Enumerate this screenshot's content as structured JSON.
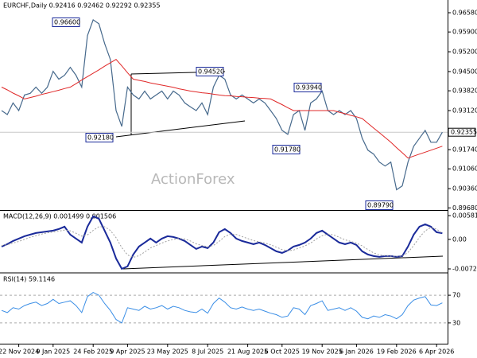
{
  "chart_data": [
    {
      "type": "line",
      "title": "EURCHF,Daily  0.92416 0.92462 0.92292 0.92355",
      "watermark": "ActionForex",
      "ylim": [
        0.8966,
        0.9703
      ],
      "yticks": [
        {
          "value": 0.9658,
          "label": "0.96580"
        },
        {
          "value": 0.959,
          "label": "0.95900"
        },
        {
          "value": 0.952,
          "label": "0.95200"
        },
        {
          "value": 0.945,
          "label": "0.94500"
        },
        {
          "value": 0.9382,
          "label": "0.93820"
        },
        {
          "value": 0.9312,
          "label": "0.93120"
        },
        {
          "value": 0.9174,
          "label": "0.91740"
        },
        {
          "value": 0.9106,
          "label": "0.91060"
        },
        {
          "value": 0.9036,
          "label": "0.90360"
        },
        {
          "value": 0.8968,
          "label": "0.89680"
        }
      ],
      "last_price": {
        "value": 0.92355,
        "label": "0.92355"
      },
      "annotations": [
        "0.96600",
        "0.94520",
        "0.92180",
        "0.93940",
        "0.91780",
        "0.89790"
      ],
      "series": [
        {
          "name": "EURCHF",
          "color": "#46698c",
          "values": [
            0.9312,
            0.9298,
            0.9339,
            0.9312,
            0.9367,
            0.9373,
            0.9395,
            0.9373,
            0.9395,
            0.9451,
            0.9423,
            0.9437,
            0.9465,
            0.9437,
            0.9395,
            0.9577,
            0.9633,
            0.9619,
            0.9549,
            0.9493,
            0.9312,
            0.9256,
            0.9395,
            0.9367,
            0.9353,
            0.9381,
            0.9353,
            0.9367,
            0.9381,
            0.9353,
            0.9381,
            0.9367,
            0.9339,
            0.9325,
            0.9312,
            0.9339,
            0.9298,
            0.9395,
            0.9437,
            0.9423,
            0.9367,
            0.9353,
            0.9367,
            0.9353,
            0.9339,
            0.9353,
            0.9339,
            0.9312,
            0.9284,
            0.9242,
            0.9228,
            0.9298,
            0.9312,
            0.9242,
            0.9339,
            0.9353,
            0.9381,
            0.9312,
            0.9298,
            0.9312,
            0.9298,
            0.9312,
            0.9284,
            0.9214,
            0.9172,
            0.9158,
            0.913,
            0.9116,
            0.913,
            0.9032,
            0.9046,
            0.913,
            0.9186,
            0.9214,
            0.9242,
            0.92,
            0.92,
            0.92355
          ]
        },
        {
          "name": "MA",
          "color": "#e02828",
          "values": [
            0.9395,
            0.9385,
            0.9374,
            0.9364,
            0.9353,
            0.9358,
            0.9363,
            0.9369,
            0.9374,
            0.9379,
            0.9384,
            0.939,
            0.9395,
            0.9407,
            0.942,
            0.9432,
            0.9444,
            0.9456,
            0.9469,
            0.9481,
            0.9493,
            0.947,
            0.9446,
            0.9423,
            0.9419,
            0.9415,
            0.941,
            0.9406,
            0.9402,
            0.9398,
            0.9394,
            0.9389,
            0.9385,
            0.9381,
            0.9378,
            0.9375,
            0.9373,
            0.937,
            0.9367,
            0.9365,
            0.9364,
            0.9362,
            0.9361,
            0.9359,
            0.9358,
            0.9356,
            0.9355,
            0.9353,
            0.9343,
            0.9333,
            0.9322,
            0.9312,
            0.9312,
            0.9312,
            0.9312,
            0.9312,
            0.9312,
            0.9312,
            0.9312,
            0.9306,
            0.9301,
            0.9295,
            0.929,
            0.9284,
            0.9267,
            0.925,
            0.9234,
            0.9217,
            0.92,
            0.9181,
            0.9163,
            0.9144,
            0.9151,
            0.9158,
            0.9165,
            0.9172,
            0.9179,
            0.9186
          ]
        }
      ]
    },
    {
      "type": "line",
      "title": "MACD(12,26,9) 0.001499 0.001506",
      "ylim": [
        -0.00761,
        0.00679
      ],
      "yticks": [
        0.005814,
        {
          "value": 0,
          "label": "0.00"
        },
        -0.007222
      ],
      "series": [
        {
          "name": "MACD",
          "color": "#1a2a9a",
          "values": [
            -0.00175,
            -0.00117,
            -0.00039,
            0.00019,
            0.00078,
            0.00117,
            0.00156,
            0.00175,
            0.00195,
            0.00214,
            0.00253,
            0.00311,
            0.00117,
            0.00019,
            -0.00078,
            0.00311,
            0.00564,
            0.00506,
            0.00214,
            -0.00078,
            -0.00467,
            -0.0072,
            -0.00662,
            -0.0037,
            -0.00175,
            -0.00078,
            0.00019,
            -0.00078,
            0.00019,
            0.00078,
            0.00058,
            0.00019,
            -0.00039,
            -0.00136,
            -0.00234,
            -0.00175,
            -0.00214,
            -0.00078,
            0.00175,
            0.00253,
            0.00156,
            0.00019,
            -0.00039,
            -0.00078,
            -0.00117,
            -0.00078,
            -0.00136,
            -0.00214,
            -0.00292,
            -0.00331,
            -0.00272,
            -0.00175,
            -0.00136,
            -0.00078,
            0.00019,
            0.00156,
            0.00214,
            0.00117,
            0.00019,
            -0.00078,
            -0.00117,
            -0.00078,
            -0.00136,
            -0.00292,
            -0.0037,
            -0.00409,
            -0.00428,
            -0.00409,
            -0.00409,
            -0.00428,
            -0.00409,
            -0.00175,
            0.00117,
            0.00311,
            0.0037,
            0.00311,
            0.00175,
            0.0015
          ]
        },
        {
          "name": "Signal",
          "color": "#a0a0a0",
          "values": [
            -0.0015,
            -0.0013,
            -0.0009,
            -0.0005,
            0,
            0.0005,
            0.0009,
            0.0013,
            0.0016,
            0.0018,
            0.002,
            0.0023,
            0.0021,
            0.0015,
            0.0008,
            0.0011,
            0.0022,
            0.0031,
            0.0031,
            0.0022,
            0.0004,
            -0.002,
            -0.0038,
            -0.0044,
            -0.004,
            -0.0031,
            -0.0021,
            -0.0015,
            -0.0009,
            -0.0004,
            0,
            0.0002,
            0.0001,
            -0.0004,
            -0.0011,
            -0.0015,
            -0.0018,
            -0.0015,
            -0.0005,
            0.0007,
            0.0013,
            0.0012,
            0.0007,
            0.0002,
            -0.0003,
            -0.0006,
            -0.0009,
            -0.0013,
            -0.0019,
            -0.0025,
            -0.0028,
            -0.0026,
            -0.0021,
            -0.0016,
            -0.0009,
            0.0001,
            0.0009,
            0.0013,
            0.0011,
            0.0005,
            -0.0001,
            -0.0005,
            -0.0009,
            -0.0016,
            -0.0025,
            -0.0033,
            -0.0038,
            -0.004,
            -0.0041,
            -0.0041,
            -0.0041,
            -0.0032,
            -0.0015,
            0.0005,
            0.0021,
            0.0029,
            0.0025,
            0.0015
          ]
        }
      ]
    },
    {
      "type": "line",
      "title": "RSI(14) 59.1146",
      "ylim": [
        0,
        100
      ],
      "yticks": [
        70,
        30
      ],
      "categories": [
        null,
        null,
        null,
        "22 Nov 2024",
        null,
        null,
        null,
        null,
        null,
        "9 Jan 2025",
        null,
        null,
        null,
        null,
        null,
        null,
        "24 Feb 2025",
        null,
        null,
        null,
        null,
        null,
        "9 Apr 2025",
        null,
        null,
        null,
        null,
        null,
        null,
        "23 May 2025",
        null,
        null,
        null,
        null,
        null,
        null,
        "8 Jul 2025",
        null,
        null,
        null,
        null,
        null,
        null,
        "21 Aug 2025",
        null,
        null,
        null,
        null,
        null,
        "6 Oct 2025",
        null,
        null,
        null,
        null,
        null,
        null,
        "19 Nov 2025",
        null,
        null,
        null,
        null,
        null,
        "6 Jan 2026",
        null,
        null,
        null,
        null,
        null,
        null,
        "19 Feb 2026",
        null,
        null,
        null,
        null,
        null,
        null,
        "6 Apr 2026",
        null
      ],
      "series": [
        {
          "name": "RSI",
          "color": "#3a8ee6",
          "values": [
            48,
            45,
            52,
            50,
            55,
            58,
            60,
            55,
            58,
            64,
            58,
            60,
            62,
            55,
            45,
            68,
            74,
            70,
            58,
            48,
            35,
            30,
            52,
            50,
            48,
            54,
            50,
            52,
            55,
            50,
            54,
            52,
            48,
            46,
            45,
            50,
            44,
            58,
            66,
            60,
            52,
            50,
            53,
            50,
            48,
            50,
            47,
            44,
            42,
            38,
            40,
            52,
            50,
            42,
            55,
            58,
            62,
            48,
            50,
            52,
            48,
            52,
            47,
            38,
            36,
            40,
            38,
            42,
            40,
            36,
            42,
            55,
            63,
            66,
            68,
            56,
            55,
            59
          ]
        }
      ]
    }
  ]
}
